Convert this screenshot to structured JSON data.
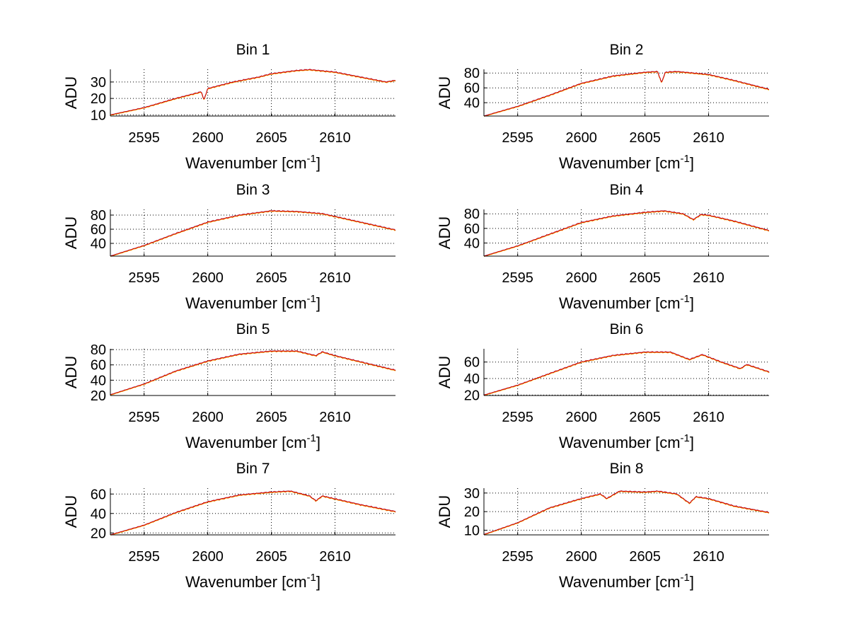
{
  "chart_data": [
    {
      "type": "line",
      "title": "Bin 1",
      "xlabel": "Wavenumber [cm",
      "xlabel_sup": "-1",
      "xlabel_end": "]",
      "ylabel": "ADU",
      "xlim": [
        2592.35,
        2614.75
      ],
      "ylim": [
        9.3,
        37.7
      ],
      "xticks": [
        2595,
        2600,
        2605,
        2610
      ],
      "yticks": [
        10,
        20,
        30
      ],
      "grid": true,
      "x": [
        2592.35,
        2595,
        2597.5,
        2599.5,
        2599.7,
        2600,
        2602,
        2604,
        2605,
        2607,
        2608,
        2610,
        2612,
        2614,
        2614.75
      ],
      "y": [
        10,
        14.4,
        20,
        24,
        19,
        26,
        30,
        33,
        35,
        37,
        37.5,
        36,
        33,
        30,
        31
      ]
    },
    {
      "type": "line",
      "title": "Bin 2",
      "xlabel": "Wavenumber [cm",
      "xlabel_sup": "-1",
      "xlabel_end": "]",
      "ylabel": "ADU",
      "xlim": [
        2592.35,
        2614.75
      ],
      "ylim": [
        22,
        85
      ],
      "xticks": [
        2595,
        2600,
        2605,
        2610
      ],
      "yticks": [
        40,
        60,
        80
      ],
      "grid": true,
      "x": [
        2592.35,
        2595,
        2597.5,
        2600,
        2602.5,
        2605,
        2606,
        2606.3,
        2606.6,
        2607.5,
        2610,
        2612,
        2614.75
      ],
      "y": [
        22,
        35,
        50,
        66,
        76,
        81,
        82,
        67,
        81,
        82,
        78,
        70,
        58
      ]
    },
    {
      "type": "line",
      "title": "Bin 3",
      "xlabel": "Wavenumber [cm",
      "xlabel_sup": "-1",
      "xlabel_end": "]",
      "ylabel": "ADU",
      "xlim": [
        2592.35,
        2614.75
      ],
      "ylim": [
        22,
        88
      ],
      "xticks": [
        2595,
        2600,
        2605,
        2610
      ],
      "yticks": [
        40,
        60,
        80
      ],
      "grid": true,
      "x": [
        2592.35,
        2595,
        2597.5,
        2600,
        2602.5,
        2605,
        2607,
        2609,
        2610,
        2612,
        2614.75
      ],
      "y": [
        22,
        37,
        54,
        70,
        80,
        86,
        85,
        82,
        78,
        70,
        59
      ]
    },
    {
      "type": "line",
      "title": "Bin 4",
      "xlabel": "Wavenumber [cm",
      "xlabel_sup": "-1",
      "xlabel_end": "]",
      "ylabel": "ADU",
      "xlim": [
        2592.35,
        2614.75
      ],
      "ylim": [
        22,
        86
      ],
      "xticks": [
        2595,
        2600,
        2605,
        2610
      ],
      "yticks": [
        40,
        60,
        80
      ],
      "grid": true,
      "x": [
        2592.35,
        2595,
        2597.5,
        2600,
        2602.5,
        2605,
        2606.5,
        2608,
        2608.8,
        2609.4,
        2610,
        2612,
        2614.75
      ],
      "y": [
        22,
        36,
        52,
        68,
        77,
        82,
        84,
        80,
        72,
        79,
        78,
        70,
        57
      ]
    },
    {
      "type": "line",
      "title": "Bin 5",
      "xlabel": "Wavenumber [cm",
      "xlabel_sup": "-1",
      "xlabel_end": "]",
      "ylabel": "ADU",
      "xlim": [
        2592.35,
        2614.75
      ],
      "ylim": [
        20,
        81
      ],
      "xticks": [
        2595,
        2600,
        2605,
        2610
      ],
      "yticks": [
        20,
        40,
        60,
        80
      ],
      "grid": true,
      "x": [
        2592.35,
        2595,
        2597.5,
        2600,
        2602.5,
        2605,
        2607,
        2608.5,
        2609,
        2610,
        2612,
        2614.75
      ],
      "y": [
        21,
        35,
        52,
        65,
        74,
        78,
        78,
        72,
        77,
        72,
        64,
        53
      ]
    },
    {
      "type": "line",
      "title": "Bin 6",
      "xlabel": "Wavenumber [cm",
      "xlabel_sup": "-1",
      "xlabel_end": "]",
      "ylabel": "ADU",
      "xlim": [
        2592.35,
        2614.75
      ],
      "ylim": [
        19.5,
        76
      ],
      "xticks": [
        2595,
        2600,
        2605,
        2610
      ],
      "yticks": [
        20,
        40,
        60
      ],
      "grid": true,
      "x": [
        2592.35,
        2595,
        2597.5,
        2600,
        2602.5,
        2605,
        2607,
        2608.5,
        2609.5,
        2611,
        2612.5,
        2613,
        2614.75
      ],
      "y": [
        20,
        32,
        46,
        60,
        68,
        72,
        72,
        63,
        69,
        60,
        52,
        57,
        48
      ]
    },
    {
      "type": "line",
      "title": "Bin 7",
      "xlabel": "Wavenumber [cm",
      "xlabel_sup": "-1",
      "xlabel_end": "]",
      "ylabel": "ADU",
      "xlim": [
        2592.35,
        2614.75
      ],
      "ylim": [
        18,
        66
      ],
      "xticks": [
        2595,
        2600,
        2605,
        2610
      ],
      "yticks": [
        20,
        40,
        60
      ],
      "grid": true,
      "x": [
        2592.35,
        2595,
        2597.5,
        2600,
        2602.5,
        2605,
        2606.5,
        2608,
        2608.5,
        2609,
        2610,
        2612,
        2614.75
      ],
      "y": [
        18,
        28,
        41,
        52,
        59,
        62,
        63,
        58,
        53,
        58,
        55,
        49,
        42
      ]
    },
    {
      "type": "line",
      "title": "Bin 8",
      "xlabel": "Wavenumber [cm",
      "xlabel_sup": "-1",
      "xlabel_end": "]",
      "ylabel": "ADU",
      "xlim": [
        2592.35,
        2614.75
      ],
      "ylim": [
        7.5,
        32.6
      ],
      "xticks": [
        2595,
        2600,
        2605,
        2610
      ],
      "yticks": [
        10,
        20,
        30
      ],
      "grid": true,
      "x": [
        2592.35,
        2595,
        2597.5,
        2600,
        2601.5,
        2602,
        2603,
        2605,
        2606,
        2607.5,
        2608.5,
        2609,
        2610,
        2612,
        2614.75
      ],
      "y": [
        7.7,
        14,
        22,
        27,
        29.5,
        27,
        31,
        30.5,
        31,
        29.5,
        24.5,
        28,
        27,
        23,
        19.5
      ]
    }
  ],
  "colors": {
    "series_main": "#e00000",
    "series_under": "#3040c0",
    "series_under2": "#f0c000",
    "axis": "#000000"
  }
}
